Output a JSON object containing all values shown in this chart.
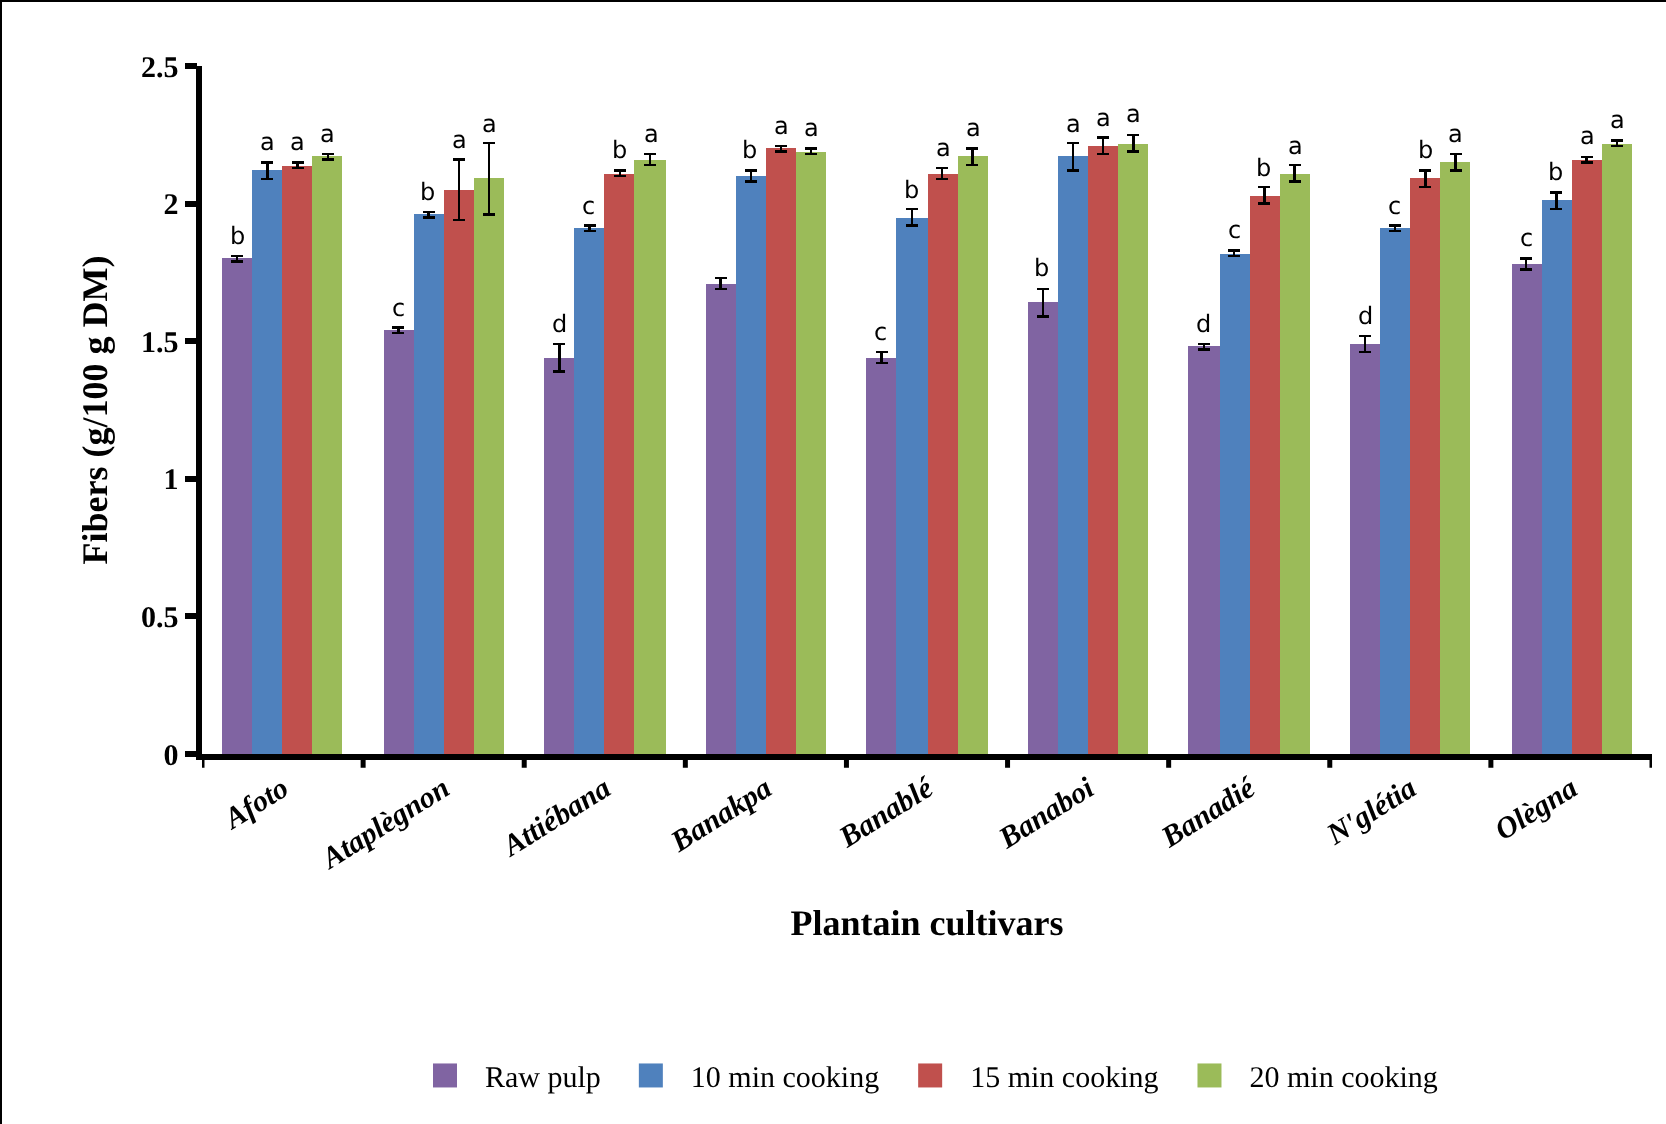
{
  "chart_data": {
    "type": "bar",
    "xlabel": "Plantain cultivars",
    "ylabel": "Fibers (g/100 g DM)",
    "categories": [
      "Afoto",
      "Ataplègnon",
      "Attiébana",
      "Banakpa",
      "Banablé",
      "Banaboi",
      "Banadié",
      "N'glétia",
      "Olègna"
    ],
    "series": [
      {
        "name": "Raw pulp",
        "color": "#8064a2",
        "values": [
          1.8,
          1.54,
          1.44,
          1.71,
          1.44,
          1.64,
          1.48,
          1.49,
          1.78
        ],
        "errors": [
          0.01,
          0.01,
          0.05,
          0.02,
          0.02,
          0.05,
          0.01,
          0.03,
          0.02
        ],
        "value_labels": [
          "b",
          "c",
          "d",
          null,
          "c",
          "b",
          "d",
          "d",
          "c"
        ]
      },
      {
        "name": "10 min cooking",
        "color": "#4f81bd",
        "values": [
          2.12,
          1.96,
          1.91,
          2.1,
          1.95,
          2.17,
          1.82,
          1.91,
          2.01
        ],
        "errors": [
          0.03,
          0.01,
          0.01,
          0.02,
          0.03,
          0.05,
          0.01,
          0.01,
          0.03
        ],
        "value_labels": [
          "a",
          "b",
          "c",
          "b",
          "b",
          "a",
          "c",
          "c",
          "b"
        ]
      },
      {
        "name": "15 min cooking",
        "color": "#c0504d",
        "values": [
          2.14,
          2.05,
          2.11,
          2.2,
          2.11,
          2.21,
          2.03,
          2.09,
          2.16
        ],
        "errors": [
          0.01,
          0.11,
          0.01,
          0.01,
          0.02,
          0.03,
          0.03,
          0.03,
          0.01
        ],
        "value_labels": [
          "a",
          "a",
          "b",
          "a",
          "a",
          "a",
          "b",
          "b",
          "a"
        ]
      },
      {
        "name": "20 min cooking",
        "color": "#9bbb59",
        "values": [
          2.17,
          2.09,
          2.16,
          2.19,
          2.17,
          2.22,
          2.11,
          2.15,
          2.22
        ],
        "errors": [
          0.01,
          0.13,
          0.02,
          0.01,
          0.03,
          0.03,
          0.03,
          0.03,
          0.01
        ],
        "value_labels": [
          "a",
          "a",
          "a",
          "a",
          "a",
          "a",
          "a",
          "a",
          "a"
        ]
      }
    ],
    "ylim": [
      0,
      2.5
    ],
    "yticks": [
      0,
      0.5,
      1,
      1.5,
      2,
      2.5
    ],
    "grid": false,
    "legend": "bottom"
  }
}
